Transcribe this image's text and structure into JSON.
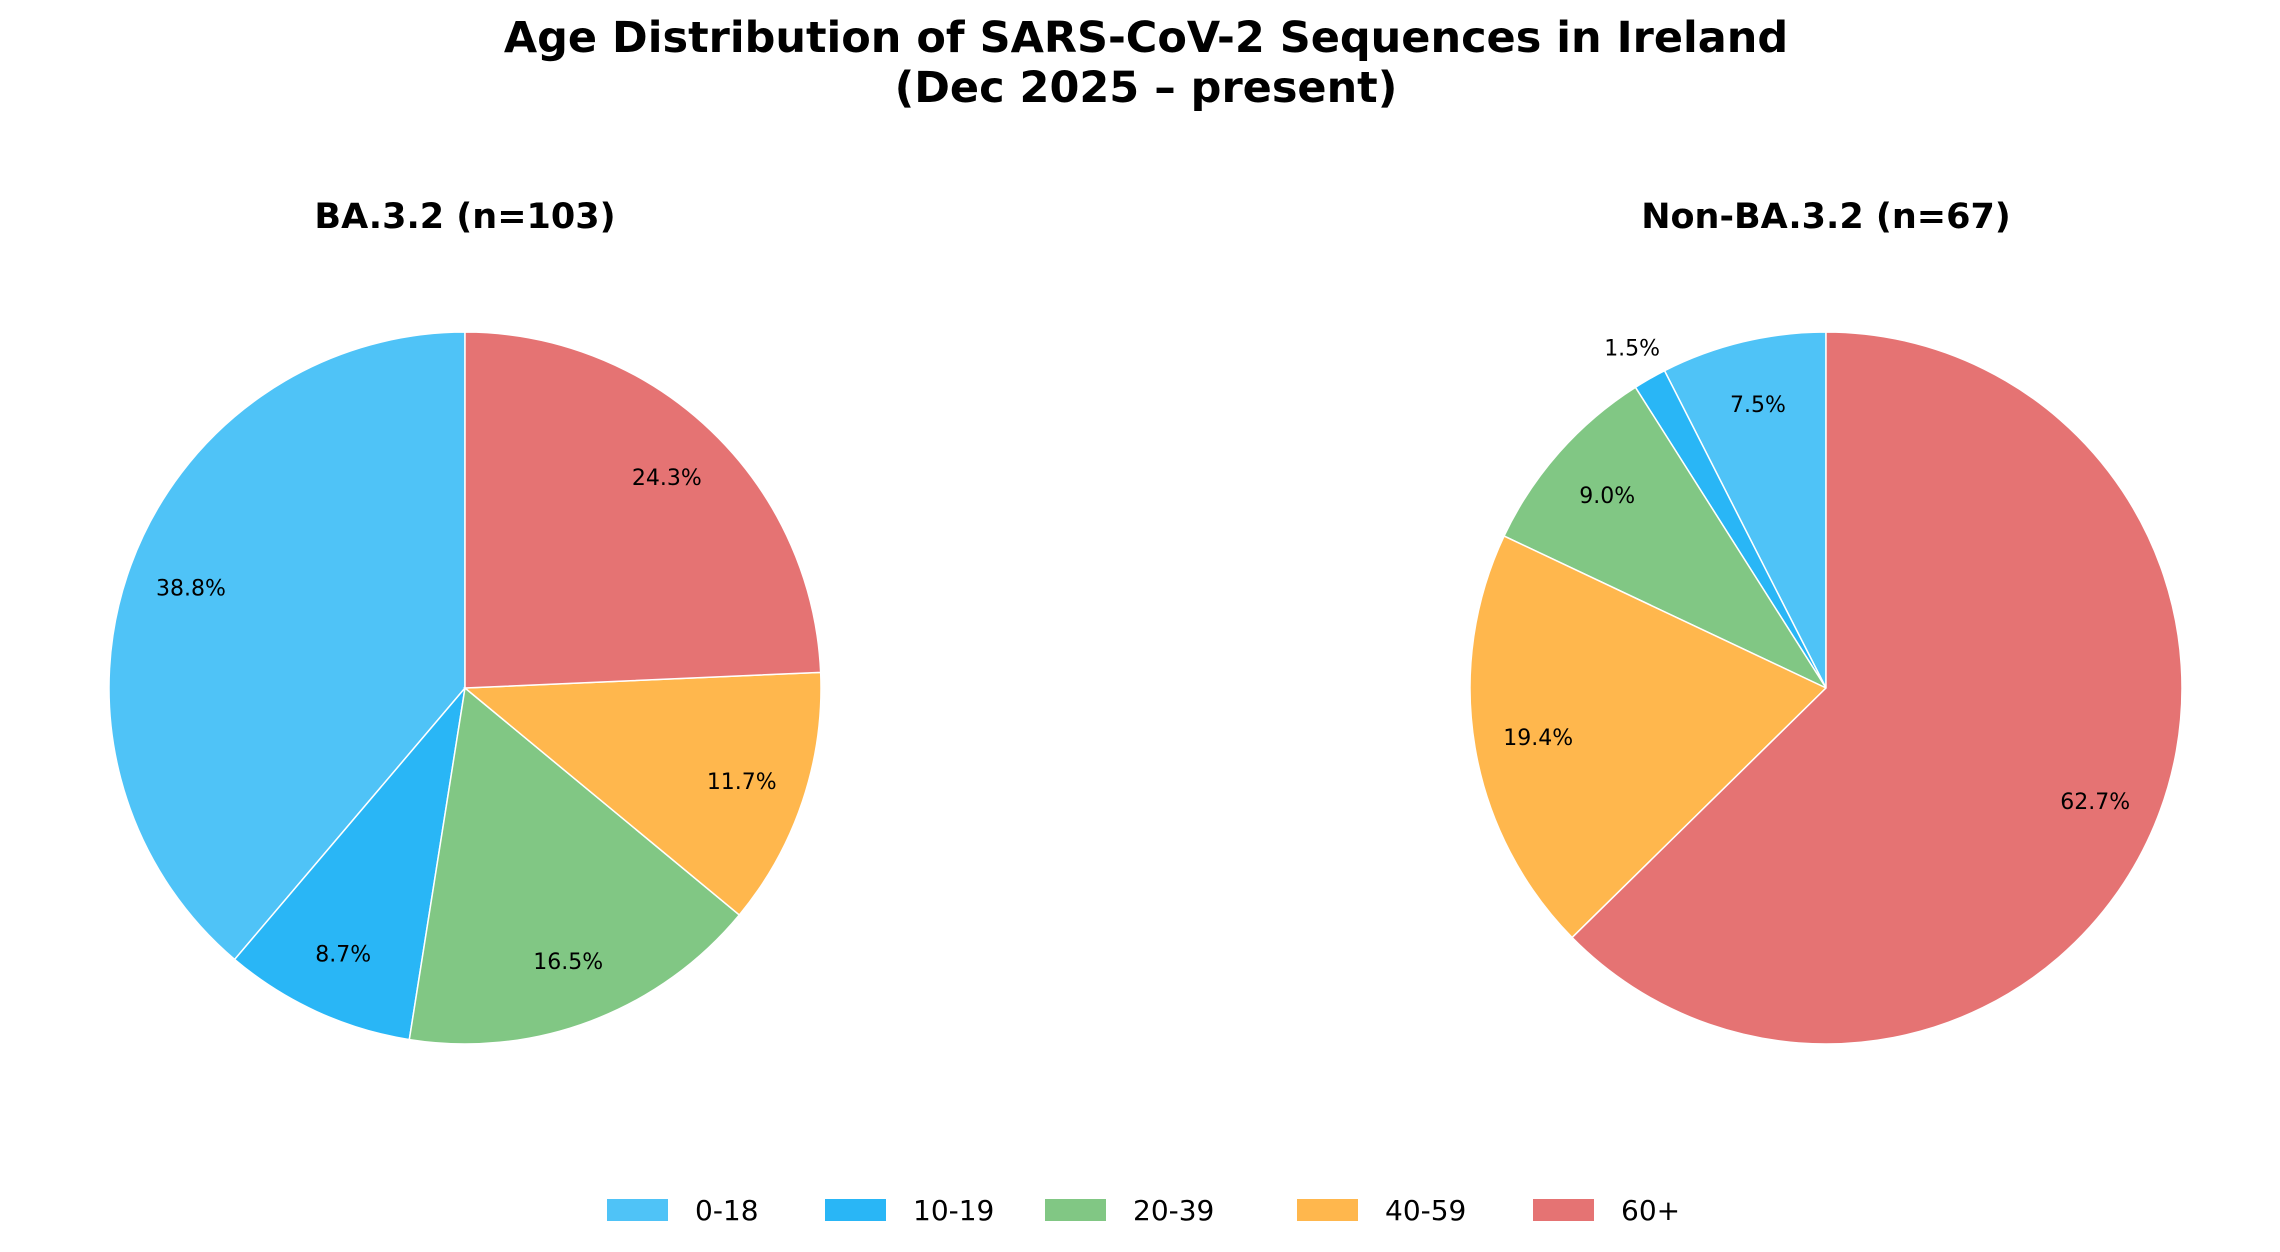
{
  "title_line1": "Age Distribution of SARS-CoV-2 Sequences in Ireland",
  "title_line2": "(Dec 2025 – present)",
  "chart_data": [
    {
      "type": "pie",
      "title": "BA.3.2 (n=103)",
      "categories": [
        "0-18",
        "10-19",
        "20-39",
        "40-59",
        "60+"
      ],
      "values": [
        38.8,
        8.7,
        16.5,
        11.7,
        24.3
      ],
      "labels": [
        "38.8%",
        "8.7%",
        "16.5%",
        "11.7%",
        "24.3%"
      ],
      "start_angle": 90,
      "direction": "counterclockwise"
    },
    {
      "type": "pie",
      "title": "Non-BA.3.2 (n=67)",
      "categories": [
        "0-18",
        "10-19",
        "20-39",
        "40-59",
        "60+"
      ],
      "values": [
        7.5,
        1.5,
        9.0,
        19.4,
        62.7
      ],
      "labels": [
        "7.5%",
        "1.5%",
        "9.0%",
        "19.4%",
        "62.7%"
      ],
      "start_angle": 90,
      "direction": "counterclockwise"
    }
  ],
  "legend": {
    "position": "bottom-center",
    "items": [
      "0-18",
      "10-19",
      "20-39",
      "40-59",
      "60+"
    ]
  },
  "colors": [
    "#4fc3f7",
    "#29b6f6",
    "#81c784",
    "#ffb74d",
    "#e57373"
  ]
}
